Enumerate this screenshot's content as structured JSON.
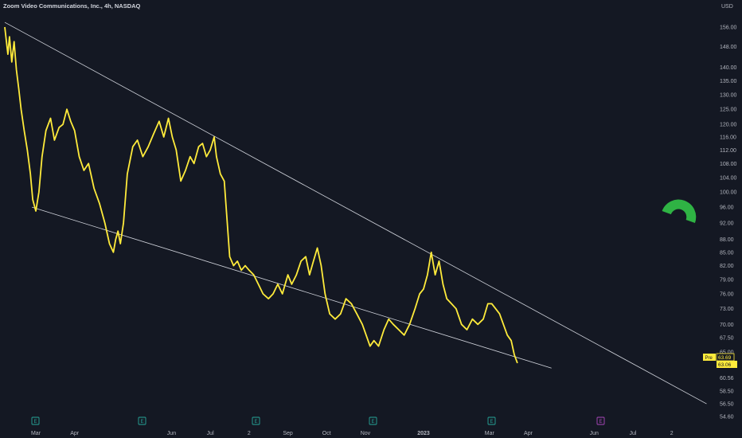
{
  "title": "Zoom Video Communications, Inc., 4h, NASDAQ",
  "currency": "USD",
  "colors": {
    "background": "#141823",
    "price_line": "#ffeb3b",
    "trend_line": "#d1d4dc",
    "logo": "#2fb344",
    "event_marker": "#26a69a",
    "event_marker_last": "#ab47bc"
  },
  "logo_icon": "horseshoe-magnet-icon",
  "price_badges": {
    "pre_label": "Pre",
    "pre_value": "63.69",
    "last_value": "63.06"
  },
  "event_markers": [
    {
      "label": "E",
      "date": "Mar"
    },
    {
      "label": "E",
      "date": "Jun"
    },
    {
      "label": "E",
      "date": "Sep"
    },
    {
      "label": "E",
      "date": "Nov"
    },
    {
      "label": "E",
      "date": "Mar"
    },
    {
      "label": "E",
      "date": "May"
    }
  ],
  "chart_data": {
    "type": "line",
    "title": "Zoom Video Communications, Inc., 4h, NASDAQ",
    "y_scale": "log",
    "ylim": [
      54.6,
      165
    ],
    "y_ticks": [
      54.6,
      56.5,
      58.5,
      60.56,
      63.06,
      65,
      67.5,
      70,
      73,
      76,
      79,
      82,
      85,
      88,
      92,
      96,
      100,
      104,
      108,
      112,
      116,
      120,
      125,
      130,
      135,
      140,
      148,
      156
    ],
    "y_tick_labels": [
      "54.60",
      "56.50",
      "58.50",
      "60.56",
      "63.06",
      "65.00",
      "67.50",
      "70.00",
      "73.00",
      "76.00",
      "79.00",
      "82.00",
      "85.00",
      "88.00",
      "92.00",
      "96.00",
      "100.00",
      "104.00",
      "108.00",
      "112.00",
      "116.00",
      "120.00",
      "125.00",
      "130.00",
      "135.00",
      "140.00",
      "148.00",
      "156.00"
    ],
    "x_ticks": [
      {
        "label": "Mar",
        "t": 0.0
      },
      {
        "label": "Apr",
        "t": 1.0
      },
      {
        "label": "Jun",
        "t": 3.5
      },
      {
        "label": "Jul",
        "t": 4.5
      },
      {
        "label": "2",
        "t": 5.5
      },
      {
        "label": "Sep",
        "t": 6.5
      },
      {
        "label": "Oct",
        "t": 7.5
      },
      {
        "label": "Nov",
        "t": 8.5
      },
      {
        "label": "2023",
        "t": 10.0
      },
      {
        "label": "Mar",
        "t": 11.7
      },
      {
        "label": "Apr",
        "t": 12.7
      },
      {
        "label": "Jun",
        "t": 14.4
      },
      {
        "label": "Jul",
        "t": 15.4
      },
      {
        "label": "2",
        "t": 16.4
      }
    ],
    "series": [
      {
        "values": [
          [
            -0.8,
            156
          ],
          [
            -0.72,
            145
          ],
          [
            -0.68,
            152
          ],
          [
            -0.62,
            142
          ],
          [
            -0.56,
            150
          ],
          [
            -0.5,
            139
          ],
          [
            -0.44,
            132
          ],
          [
            -0.38,
            125
          ],
          [
            -0.3,
            118
          ],
          [
            -0.22,
            112
          ],
          [
            -0.14,
            105
          ],
          [
            -0.08,
            98
          ],
          [
            0.0,
            95
          ],
          [
            0.08,
            100
          ],
          [
            0.16,
            110
          ],
          [
            0.26,
            118
          ],
          [
            0.38,
            122
          ],
          [
            0.48,
            115
          ],
          [
            0.6,
            119
          ],
          [
            0.7,
            120
          ],
          [
            0.8,
            125
          ],
          [
            0.9,
            121
          ],
          [
            1.0,
            118
          ],
          [
            1.12,
            110
          ],
          [
            1.24,
            106
          ],
          [
            1.36,
            108
          ],
          [
            1.5,
            101
          ],
          [
            1.64,
            97
          ],
          [
            1.78,
            92
          ],
          [
            1.9,
            87
          ],
          [
            2.0,
            85
          ],
          [
            2.06,
            88
          ],
          [
            2.12,
            90
          ],
          [
            2.18,
            87
          ],
          [
            2.26,
            92
          ],
          [
            2.36,
            105
          ],
          [
            2.5,
            113
          ],
          [
            2.62,
            115
          ],
          [
            2.76,
            110
          ],
          [
            2.9,
            113
          ],
          [
            3.04,
            117
          ],
          [
            3.18,
            121
          ],
          [
            3.3,
            116
          ],
          [
            3.42,
            122
          ],
          [
            3.52,
            116
          ],
          [
            3.62,
            112
          ],
          [
            3.74,
            103
          ],
          [
            3.86,
            106
          ],
          [
            3.98,
            110
          ],
          [
            4.08,
            108
          ],
          [
            4.2,
            113
          ],
          [
            4.3,
            114
          ],
          [
            4.4,
            110
          ],
          [
            4.5,
            112
          ],
          [
            4.6,
            116
          ],
          [
            4.66,
            110
          ],
          [
            4.76,
            105
          ],
          [
            4.86,
            103
          ],
          [
            5.0,
            84
          ],
          [
            5.1,
            82
          ],
          [
            5.2,
            83
          ],
          [
            5.3,
            81
          ],
          [
            5.4,
            82
          ],
          [
            5.5,
            81
          ],
          [
            5.62,
            80
          ],
          [
            5.74,
            78
          ],
          [
            5.86,
            76
          ],
          [
            6.0,
            75
          ],
          [
            6.12,
            76
          ],
          [
            6.24,
            78
          ],
          [
            6.36,
            76
          ],
          [
            6.5,
            80
          ],
          [
            6.6,
            78
          ],
          [
            6.72,
            80
          ],
          [
            6.84,
            83
          ],
          [
            6.96,
            84
          ],
          [
            7.06,
            80
          ],
          [
            7.16,
            83
          ],
          [
            7.26,
            86
          ],
          [
            7.36,
            82
          ],
          [
            7.46,
            76
          ],
          [
            7.58,
            72
          ],
          [
            7.72,
            71
          ],
          [
            7.86,
            72
          ],
          [
            8.0,
            75
          ],
          [
            8.14,
            74
          ],
          [
            8.28,
            72
          ],
          [
            8.42,
            70
          ],
          [
            8.52,
            68
          ],
          [
            8.62,
            66
          ],
          [
            8.72,
            67
          ],
          [
            8.84,
            66
          ],
          [
            8.98,
            69
          ],
          [
            9.1,
            71
          ],
          [
            9.22,
            70
          ],
          [
            9.36,
            69
          ],
          [
            9.5,
            68
          ],
          [
            9.64,
            70
          ],
          [
            9.78,
            73
          ],
          [
            9.9,
            76
          ],
          [
            10.0,
            77
          ],
          [
            10.1,
            80
          ],
          [
            10.2,
            85
          ],
          [
            10.3,
            80
          ],
          [
            10.4,
            83
          ],
          [
            10.5,
            78
          ],
          [
            10.6,
            75
          ],
          [
            10.72,
            74
          ],
          [
            10.84,
            73
          ],
          [
            10.98,
            70
          ],
          [
            11.12,
            69
          ],
          [
            11.26,
            71
          ],
          [
            11.4,
            70
          ],
          [
            11.54,
            71
          ],
          [
            11.66,
            74
          ],
          [
            11.76,
            74
          ],
          [
            11.86,
            73
          ],
          [
            11.96,
            72
          ],
          [
            12.06,
            70
          ],
          [
            12.16,
            68
          ],
          [
            12.26,
            67
          ],
          [
            12.34,
            64.5
          ],
          [
            12.42,
            63.06
          ]
        ]
      }
    ],
    "trend_lines": [
      {
        "from": [
          -0.8,
          158
        ],
        "to": [
          17.3,
          56.5
        ]
      },
      {
        "from": [
          -0.1,
          96
        ],
        "to": [
          13.3,
          62.2
        ]
      }
    ],
    "grid": false,
    "legend": "none"
  }
}
